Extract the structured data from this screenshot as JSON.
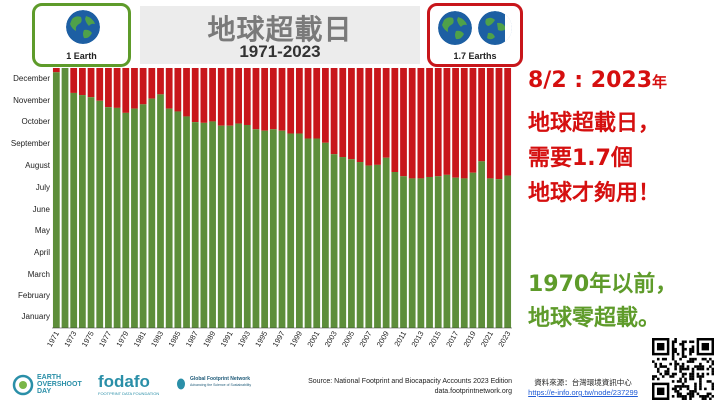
{
  "title": "地球超載日",
  "subtitle": "1971-2023",
  "earth_left_label": "1 Earth",
  "earth_right_label": "1.7 Earths",
  "headline": {
    "line1_prefix": "8/2 : 2023",
    "line1_suffix": "年",
    "line2": "地球超載日，",
    "line3": "需要1.7個",
    "line4": "地球才夠用！"
  },
  "note": {
    "line1": "1970年以前，",
    "line2": "地球零超載。"
  },
  "source": {
    "line1": "Source: National Footprint and Biocapacity Accounts 2023 Edition",
    "line2": "data.footprintnetwork.org"
  },
  "credit": {
    "line1": "資料來源：台灣環境資訊中心",
    "link": "https://e-info.org.tw/node/237299"
  },
  "logos": {
    "eod_line1": "EARTH",
    "eod_line2": "OVERSHOOT",
    "eod_line3": "DAY",
    "fodafo": "fodafo",
    "fodafo_sub": "FOOTPRINT DATA FOUNDATION",
    "gfn": "Global Footprint Network",
    "gfn_sub": "Advancing the Science of Sustainability"
  },
  "colors": {
    "green": "#5d8e3a",
    "red": "#c8161b",
    "box_green": "#5e9b2a",
    "box_red": "#c8161b"
  },
  "chart_data": {
    "type": "bar",
    "stacked": true,
    "y_axis": "month of the year",
    "y_tick_labels": [
      "January",
      "February",
      "March",
      "April",
      "May",
      "June",
      "July",
      "August",
      "September",
      "October",
      "November",
      "December"
    ],
    "x_tick_labels": [
      "1971",
      "1973",
      "1975",
      "1977",
      "1979",
      "1981",
      "1983",
      "1985",
      "1987",
      "1989",
      "1991",
      "1993",
      "1995",
      "1997",
      "1999",
      "2001",
      "2003",
      "2005",
      "2007",
      "2009",
      "2011",
      "2013",
      "2015",
      "2017",
      "2019",
      "2021",
      "2023"
    ],
    "x": [
      1971,
      1972,
      1973,
      1974,
      1975,
      1976,
      1977,
      1978,
      1979,
      1980,
      1981,
      1982,
      1983,
      1984,
      1985,
      1986,
      1987,
      1988,
      1989,
      1990,
      1991,
      1992,
      1993,
      1994,
      1995,
      1996,
      1997,
      1998,
      1999,
      2000,
      2001,
      2002,
      2003,
      2004,
      2005,
      2006,
      2007,
      2008,
      2009,
      2010,
      2011,
      2012,
      2013,
      2014,
      2015,
      2016,
      2017,
      2018,
      2019,
      2020,
      2021,
      2022,
      2023
    ],
    "overshoot_day": [
      "12-25",
      "12-31",
      "11-26",
      "11-23",
      "11-20",
      "11-15",
      "11-06",
      "11-05",
      "10-29",
      "11-04",
      "11-10",
      "11-18",
      "11-24",
      "11-04",
      "10-31",
      "10-24",
      "10-16",
      "10-15",
      "10-17",
      "10-11",
      "10-11",
      "10-14",
      "10-12",
      "10-06",
      "10-04",
      "10-06",
      "10-04",
      "09-30",
      "09-30",
      "09-23",
      "09-23",
      "09-17",
      "09-01",
      "08-28",
      "08-25",
      "08-21",
      "08-16",
      "08-17",
      "08-27",
      "08-07",
      "08-01",
      "07-29",
      "07-29",
      "07-31",
      "08-01",
      "08-03",
      "07-30",
      "07-29",
      "08-06",
      "08-22",
      "07-29",
      "07-28",
      "08-02"
    ],
    "series": [
      {
        "name": "",
        "color": "#5d8e3a"
      },
      {
        "name": "",
        "color": "#c8161b"
      }
    ]
  }
}
